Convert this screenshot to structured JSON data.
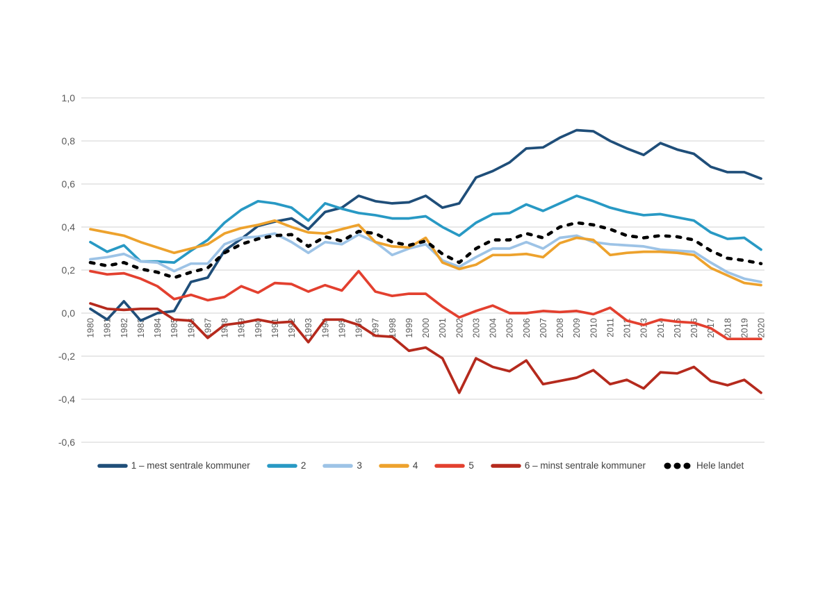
{
  "chart": {
    "background": "#FFFFFF",
    "gridline_color": "#D9D9D9",
    "axis_text_color": "#595959",
    "legend_text_color": "#404040"
  },
  "chart_data": {
    "type": "line",
    "title": "",
    "xlabel": "",
    "ylabel": "",
    "grid": "horizontal",
    "legend_position": "bottom",
    "decimal_style": "comma",
    "ylim": [
      -0.6,
      1.0
    ],
    "x_labels": [
      "1980",
      "1981",
      "1982",
      "1983",
      "1984",
      "1985",
      "1986",
      "1987",
      "1988",
      "1989",
      "1990",
      "1991",
      "1992",
      "1993",
      "1994",
      "1995",
      "1996",
      "1997",
      "1998",
      "1999",
      "2000",
      "2001",
      "2002",
      "2003",
      "2004",
      "2005",
      "2006",
      "2007",
      "2008",
      "2009",
      "2010",
      "2011",
      "2012",
      "2013",
      "2014",
      "2015",
      "2016",
      "2017",
      "2018",
      "2019",
      "2020"
    ],
    "yticks": [
      {
        "value": 1.0,
        "label": "1,0"
      },
      {
        "value": 0.8,
        "label": "0,8"
      },
      {
        "value": 0.6,
        "label": "0,6"
      },
      {
        "value": 0.4,
        "label": "0,4"
      },
      {
        "value": 0.2,
        "label": "0,2"
      },
      {
        "value": 0.0,
        "label": "0,0"
      },
      {
        "value": -0.2,
        "label": "-0,2"
      },
      {
        "value": -0.4,
        "label": "-0,4"
      },
      {
        "value": -0.6,
        "label": "-0,6"
      }
    ],
    "series": [
      {
        "name": "1 – mest sentrale kommuner",
        "color": "#1F4E79",
        "style": "solid",
        "values": [
          0.02,
          -0.03,
          0.055,
          -0.035,
          0.0,
          0.01,
          0.145,
          0.165,
          0.29,
          0.345,
          0.405,
          0.425,
          0.44,
          0.39,
          0.47,
          0.49,
          0.545,
          0.52,
          0.51,
          0.515,
          0.545,
          0.49,
          0.51,
          0.63,
          0.66,
          0.7,
          0.765,
          0.77,
          0.815,
          0.85,
          0.845,
          0.8,
          0.765,
          0.735,
          0.79,
          0.76,
          0.74,
          0.68,
          0.655,
          0.655,
          0.625
        ]
      },
      {
        "name": "2",
        "color": "#2899C4",
        "style": "solid",
        "values": [
          0.33,
          0.285,
          0.315,
          0.24,
          0.24,
          0.235,
          0.29,
          0.34,
          0.42,
          0.48,
          0.52,
          0.51,
          0.49,
          0.43,
          0.51,
          0.485,
          0.465,
          0.455,
          0.44,
          0.44,
          0.45,
          0.4,
          0.36,
          0.42,
          0.46,
          0.465,
          0.505,
          0.475,
          0.51,
          0.545,
          0.52,
          0.49,
          0.47,
          0.455,
          0.46,
          0.445,
          0.43,
          0.375,
          0.345,
          0.35,
          0.295
        ]
      },
      {
        "name": "3",
        "color": "#9DC3E6",
        "style": "solid",
        "values": [
          0.25,
          0.26,
          0.275,
          0.24,
          0.235,
          0.195,
          0.23,
          0.23,
          0.32,
          0.35,
          0.355,
          0.37,
          0.33,
          0.28,
          0.33,
          0.32,
          0.365,
          0.33,
          0.27,
          0.3,
          0.32,
          0.245,
          0.215,
          0.26,
          0.3,
          0.3,
          0.33,
          0.3,
          0.35,
          0.36,
          0.33,
          0.32,
          0.315,
          0.31,
          0.295,
          0.29,
          0.285,
          0.235,
          0.19,
          0.16,
          0.145
        ]
      },
      {
        "name": "4",
        "color": "#EDA22D",
        "style": "solid",
        "values": [
          0.39,
          0.375,
          0.36,
          0.33,
          0.305,
          0.28,
          0.3,
          0.32,
          0.37,
          0.395,
          0.41,
          0.43,
          0.4,
          0.375,
          0.37,
          0.39,
          0.41,
          0.33,
          0.31,
          0.305,
          0.35,
          0.235,
          0.205,
          0.225,
          0.27,
          0.27,
          0.275,
          0.26,
          0.325,
          0.35,
          0.34,
          0.27,
          0.28,
          0.285,
          0.285,
          0.28,
          0.27,
          0.21,
          0.175,
          0.14,
          0.13
        ]
      },
      {
        "name": "5",
        "color": "#E3402F",
        "style": "solid",
        "values": [
          0.195,
          0.18,
          0.185,
          0.16,
          0.125,
          0.065,
          0.085,
          0.06,
          0.075,
          0.125,
          0.095,
          0.14,
          0.135,
          0.1,
          0.13,
          0.105,
          0.195,
          0.1,
          0.08,
          0.09,
          0.09,
          0.03,
          -0.02,
          0.01,
          0.035,
          0.0,
          0.0,
          0.01,
          0.005,
          0.01,
          -0.005,
          0.025,
          -0.035,
          -0.055,
          -0.03,
          -0.04,
          -0.045,
          -0.07,
          -0.12,
          -0.12,
          -0.12
        ]
      },
      {
        "name": "6 – minst sentrale kommuner",
        "color": "#B52A1D",
        "style": "solid",
        "values": [
          0.045,
          0.02,
          0.015,
          0.02,
          0.02,
          -0.03,
          -0.035,
          -0.115,
          -0.055,
          -0.045,
          -0.03,
          -0.045,
          -0.04,
          -0.135,
          -0.03,
          -0.03,
          -0.055,
          -0.105,
          -0.11,
          -0.175,
          -0.16,
          -0.21,
          -0.37,
          -0.21,
          -0.25,
          -0.27,
          -0.22,
          -0.33,
          -0.315,
          -0.3,
          -0.265,
          -0.33,
          -0.31,
          -0.35,
          -0.275,
          -0.28,
          -0.25,
          -0.315,
          -0.335,
          -0.31,
          -0.37
        ]
      },
      {
        "name": "Hele landet",
        "color": "#000000",
        "style": "dotted",
        "values": [
          0.235,
          0.22,
          0.235,
          0.205,
          0.19,
          0.165,
          0.19,
          0.21,
          0.28,
          0.32,
          0.345,
          0.36,
          0.365,
          0.31,
          0.355,
          0.335,
          0.38,
          0.37,
          0.33,
          0.315,
          0.335,
          0.275,
          0.235,
          0.3,
          0.34,
          0.34,
          0.37,
          0.35,
          0.4,
          0.42,
          0.41,
          0.39,
          0.36,
          0.35,
          0.36,
          0.355,
          0.34,
          0.29,
          0.255,
          0.245,
          0.23
        ]
      }
    ]
  }
}
